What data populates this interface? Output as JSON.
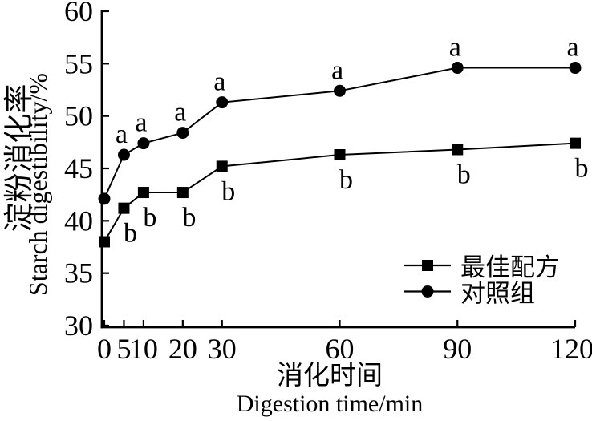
{
  "figure": {
    "background": "#ffffff",
    "ink": "#000000"
  },
  "chart_data": {
    "type": "line",
    "title": "",
    "x": [
      0,
      5,
      10,
      20,
      30,
      60,
      90,
      120
    ],
    "x_ticks": [
      0,
      5,
      10,
      20,
      30,
      60,
      90,
      120
    ],
    "y_ticks": [
      30,
      35,
      40,
      45,
      50,
      55,
      60
    ],
    "xlim": [
      0,
      120
    ],
    "ylim": [
      30,
      60
    ],
    "grid": false,
    "xlabel_zh": "消化时间",
    "xlabel_en": "Digestion time/min",
    "ylabel_zh": "淀粉消化率",
    "ylabel_en": "Starch digestibility/%",
    "legend_position": "inside lower right",
    "series": [
      {
        "name": "最佳配方",
        "marker": "square",
        "label_side": "below",
        "values": [
          38.0,
          41.2,
          42.7,
          42.7,
          45.2,
          46.3,
          46.8,
          47.4
        ],
        "point_labels": [
          "",
          "b",
          "b",
          "b",
          "b",
          "b",
          "b",
          "b"
        ]
      },
      {
        "name": "对照组",
        "marker": "circle",
        "label_side": "above",
        "values": [
          42.1,
          46.3,
          47.4,
          48.4,
          51.3,
          52.4,
          54.6,
          54.6
        ],
        "point_labels": [
          "",
          "a",
          "a",
          "a",
          "a",
          "a",
          "a",
          "a"
        ]
      }
    ]
  }
}
